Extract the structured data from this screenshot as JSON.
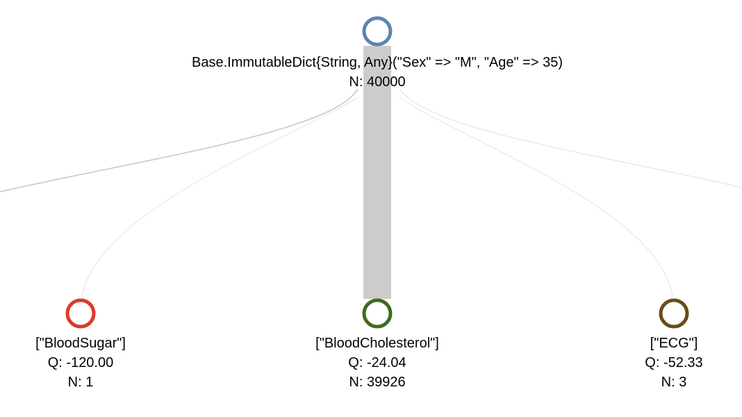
{
  "root": {
    "label": "Base.ImmutableDict{String, Any}(\"Sex\" => \"M\", \"Age\" => 35)",
    "n": "N: 40000",
    "color": "#5b84b1"
  },
  "children": [
    {
      "action": "[\"BloodSugar\"]",
      "q": "Q: -120.00",
      "n": "N: 1",
      "color": "#dd3a26"
    },
    {
      "action": "[\"BloodCholesterol\"]",
      "q": "Q: -24.04",
      "n": "N: 39926",
      "color": "#3f6a1e"
    },
    {
      "action": "[\"ECG\"]",
      "q": "Q: -52.33",
      "n": "N: 3",
      "color": "#694d17"
    }
  ],
  "link_color_main": "#cccccc",
  "link_color_thin": "#c8c8c8"
}
